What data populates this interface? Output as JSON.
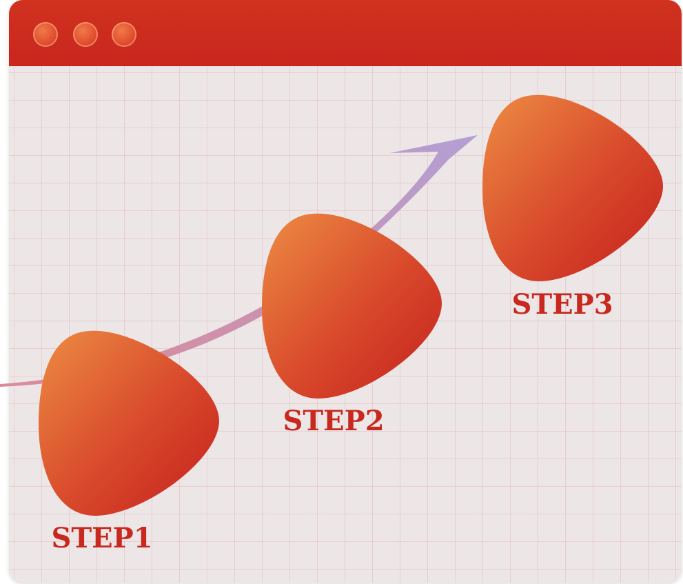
{
  "window": {
    "controls": [
      "window-control",
      "window-control",
      "window-control"
    ]
  },
  "steps": [
    {
      "label": "STEP1"
    },
    {
      "label": "STEP2"
    },
    {
      "label": "STEP3"
    }
  ],
  "colors": {
    "titlebar": "#c9261d",
    "blob_light": "#ea8a42",
    "blob_dark": "#c8221e",
    "arrow_start": "#d2879b",
    "arrow_end": "#b59dd2",
    "label": "#c8281e",
    "background": "#ece6e7"
  }
}
